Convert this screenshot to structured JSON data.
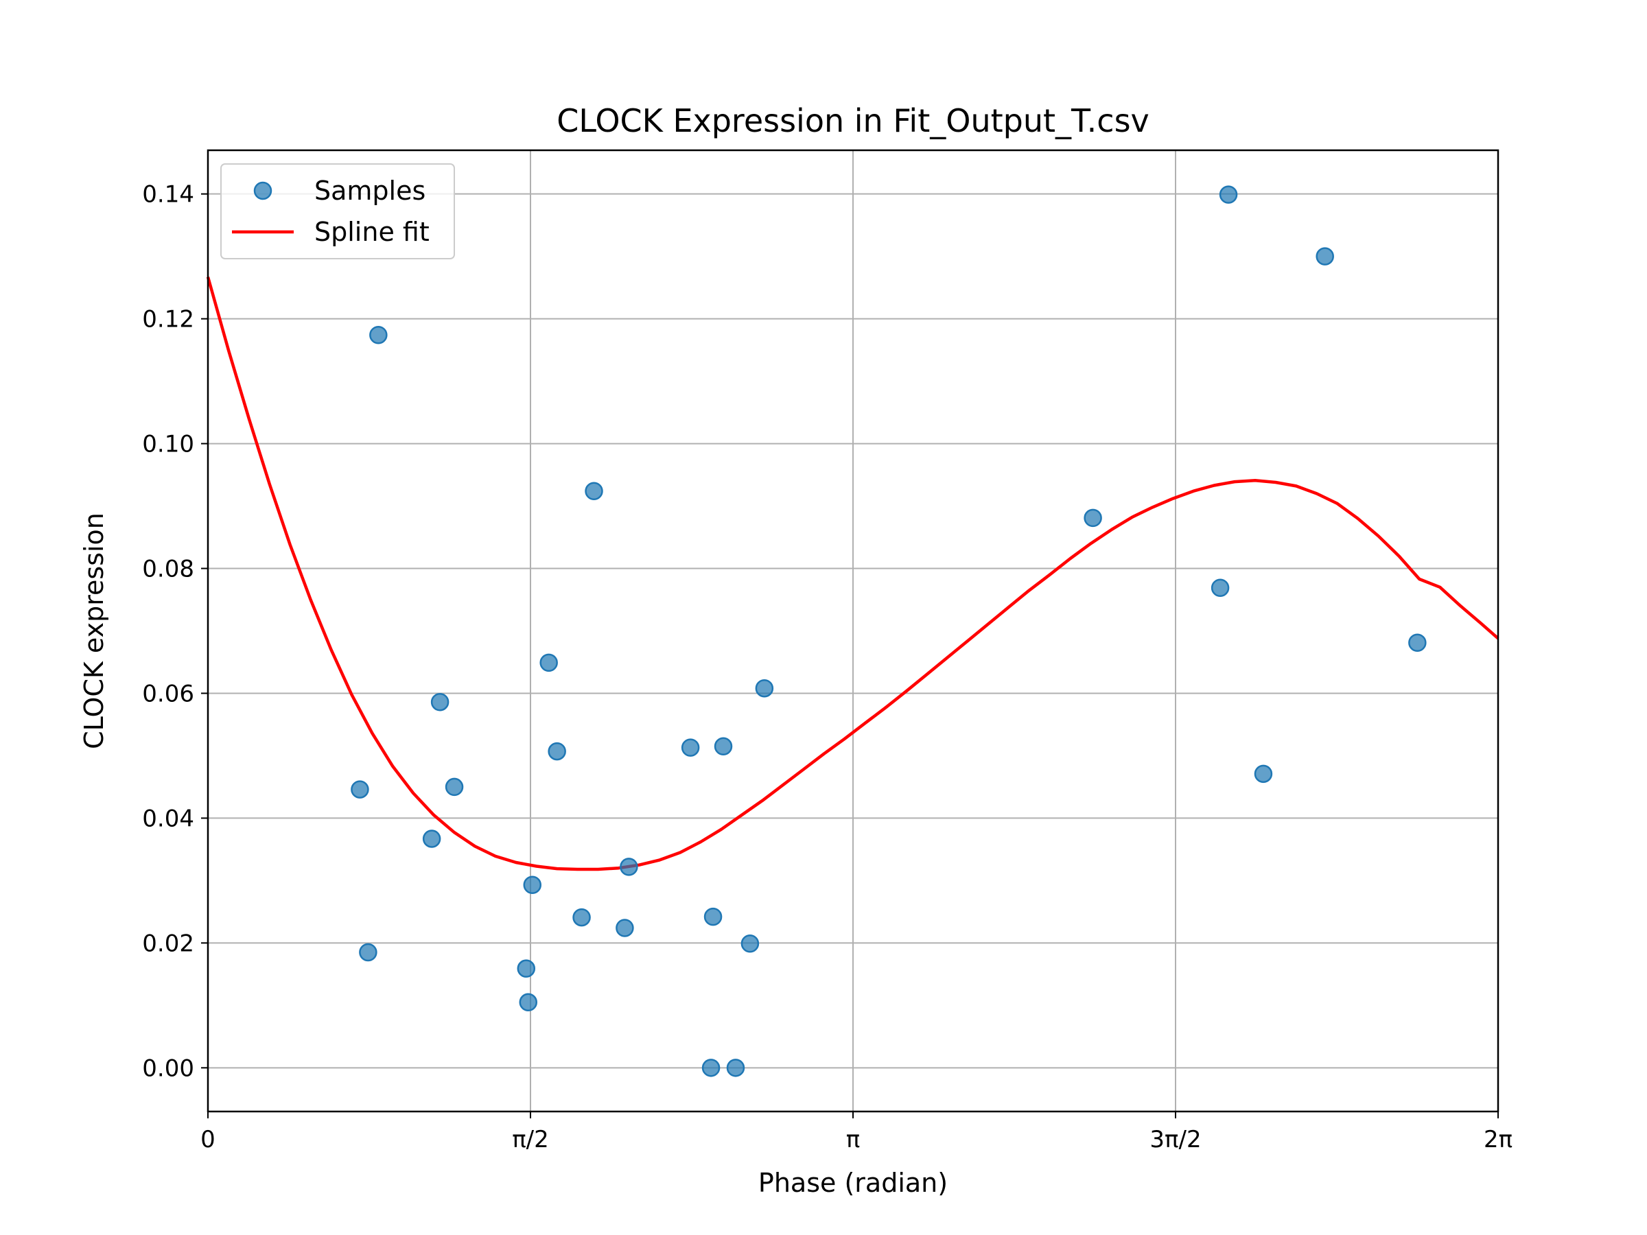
{
  "chart_data": {
    "type": "scatter",
    "title": "CLOCK Expression in Fit_Output_T.csv",
    "xlabel": "Phase (radian)",
    "ylabel": "CLOCK expression",
    "xlim": [
      0,
      6.283185
    ],
    "ylim": [
      -0.007,
      0.147
    ],
    "grid": true,
    "legend_position": "top-left",
    "x_ticks": [
      {
        "value": 0,
        "label": "0"
      },
      {
        "value": 1.570796,
        "label": "π/2"
      },
      {
        "value": 3.141593,
        "label": "π"
      },
      {
        "value": 4.712389,
        "label": "3π/2"
      },
      {
        "value": 6.283185,
        "label": "2π"
      }
    ],
    "y_ticks": [
      {
        "value": 0.0,
        "label": "0.00"
      },
      {
        "value": 0.02,
        "label": "0.02"
      },
      {
        "value": 0.04,
        "label": "0.04"
      },
      {
        "value": 0.06,
        "label": "0.06"
      },
      {
        "value": 0.08,
        "label": "0.08"
      },
      {
        "value": 0.1,
        "label": "0.10"
      },
      {
        "value": 0.12,
        "label": "0.12"
      },
      {
        "value": 0.14,
        "label": "0.14"
      }
    ],
    "series": [
      {
        "name": "Samples",
        "kind": "scatter",
        "color": "#1f77b4",
        "points": [
          [
            0.74,
            0.0446
          ],
          [
            0.78,
            0.0185
          ],
          [
            0.83,
            0.1174
          ],
          [
            1.09,
            0.0367
          ],
          [
            1.13,
            0.0586
          ],
          [
            1.2,
            0.045
          ],
          [
            1.55,
            0.0159
          ],
          [
            1.56,
            0.0105
          ],
          [
            1.58,
            0.0293
          ],
          [
            1.66,
            0.0649
          ],
          [
            1.7,
            0.0507
          ],
          [
            1.82,
            0.0241
          ],
          [
            1.88,
            0.0924
          ],
          [
            2.03,
            0.0224
          ],
          [
            2.05,
            0.0322
          ],
          [
            2.35,
            0.0513
          ],
          [
            2.45,
            0.0
          ],
          [
            2.46,
            0.0242
          ],
          [
            2.51,
            0.0515
          ],
          [
            2.57,
            0.0
          ],
          [
            2.64,
            0.0199
          ],
          [
            2.71,
            0.0608
          ],
          [
            4.31,
            0.0881
          ],
          [
            4.93,
            0.0769
          ],
          [
            4.97,
            0.1399
          ],
          [
            5.14,
            0.0471
          ],
          [
            5.44,
            0.13
          ],
          [
            5.89,
            0.0681
          ]
        ]
      },
      {
        "name": "Spline fit",
        "kind": "line",
        "color": "#ff0000",
        "points": [
          [
            0.0,
            0.1267
          ],
          [
            0.1,
            0.115
          ],
          [
            0.2,
            0.104
          ],
          [
            0.3,
            0.0935
          ],
          [
            0.4,
            0.0838
          ],
          [
            0.5,
            0.075
          ],
          [
            0.6,
            0.067
          ],
          [
            0.7,
            0.0598
          ],
          [
            0.8,
            0.0536
          ],
          [
            0.9,
            0.0483
          ],
          [
            1.0,
            0.044
          ],
          [
            1.1,
            0.0405
          ],
          [
            1.2,
            0.0377
          ],
          [
            1.3,
            0.0355
          ],
          [
            1.4,
            0.0339
          ],
          [
            1.5,
            0.0329
          ],
          [
            1.6,
            0.0323
          ],
          [
            1.7,
            0.0319
          ],
          [
            1.8,
            0.0318
          ],
          [
            1.9,
            0.0318
          ],
          [
            2.0,
            0.032
          ],
          [
            2.1,
            0.0325
          ],
          [
            2.2,
            0.0333
          ],
          [
            2.3,
            0.0345
          ],
          [
            2.4,
            0.0362
          ],
          [
            2.5,
            0.0382
          ],
          [
            2.6,
            0.0405
          ],
          [
            2.7,
            0.0428
          ],
          [
            2.8,
            0.0453
          ],
          [
            2.9,
            0.0478
          ],
          [
            3.0,
            0.0503
          ],
          [
            3.1,
            0.0527
          ],
          [
            3.2,
            0.0552
          ],
          [
            3.3,
            0.0577
          ],
          [
            3.4,
            0.0603
          ],
          [
            3.5,
            0.063
          ],
          [
            3.6,
            0.0657
          ],
          [
            3.7,
            0.0684
          ],
          [
            3.8,
            0.0711
          ],
          [
            3.9,
            0.0738
          ],
          [
            4.0,
            0.0765
          ],
          [
            4.1,
            0.079
          ],
          [
            4.2,
            0.0816
          ],
          [
            4.3,
            0.084
          ],
          [
            4.4,
            0.0862
          ],
          [
            4.5,
            0.0882
          ],
          [
            4.6,
            0.0898
          ],
          [
            4.7,
            0.0912
          ],
          [
            4.8,
            0.0924
          ],
          [
            4.9,
            0.0933
          ],
          [
            5.0,
            0.0939
          ],
          [
            5.1,
            0.0941
          ],
          [
            5.2,
            0.0938
          ],
          [
            5.3,
            0.0932
          ],
          [
            5.4,
            0.092
          ],
          [
            5.5,
            0.0904
          ],
          [
            5.6,
            0.088
          ],
          [
            5.7,
            0.0852
          ],
          [
            5.8,
            0.082
          ],
          [
            5.9,
            0.0783
          ],
          [
            6.0,
            0.077
          ],
          [
            6.1,
            0.074
          ],
          [
            6.2,
            0.0712
          ],
          [
            6.283185,
            0.0688
          ]
        ]
      }
    ]
  }
}
